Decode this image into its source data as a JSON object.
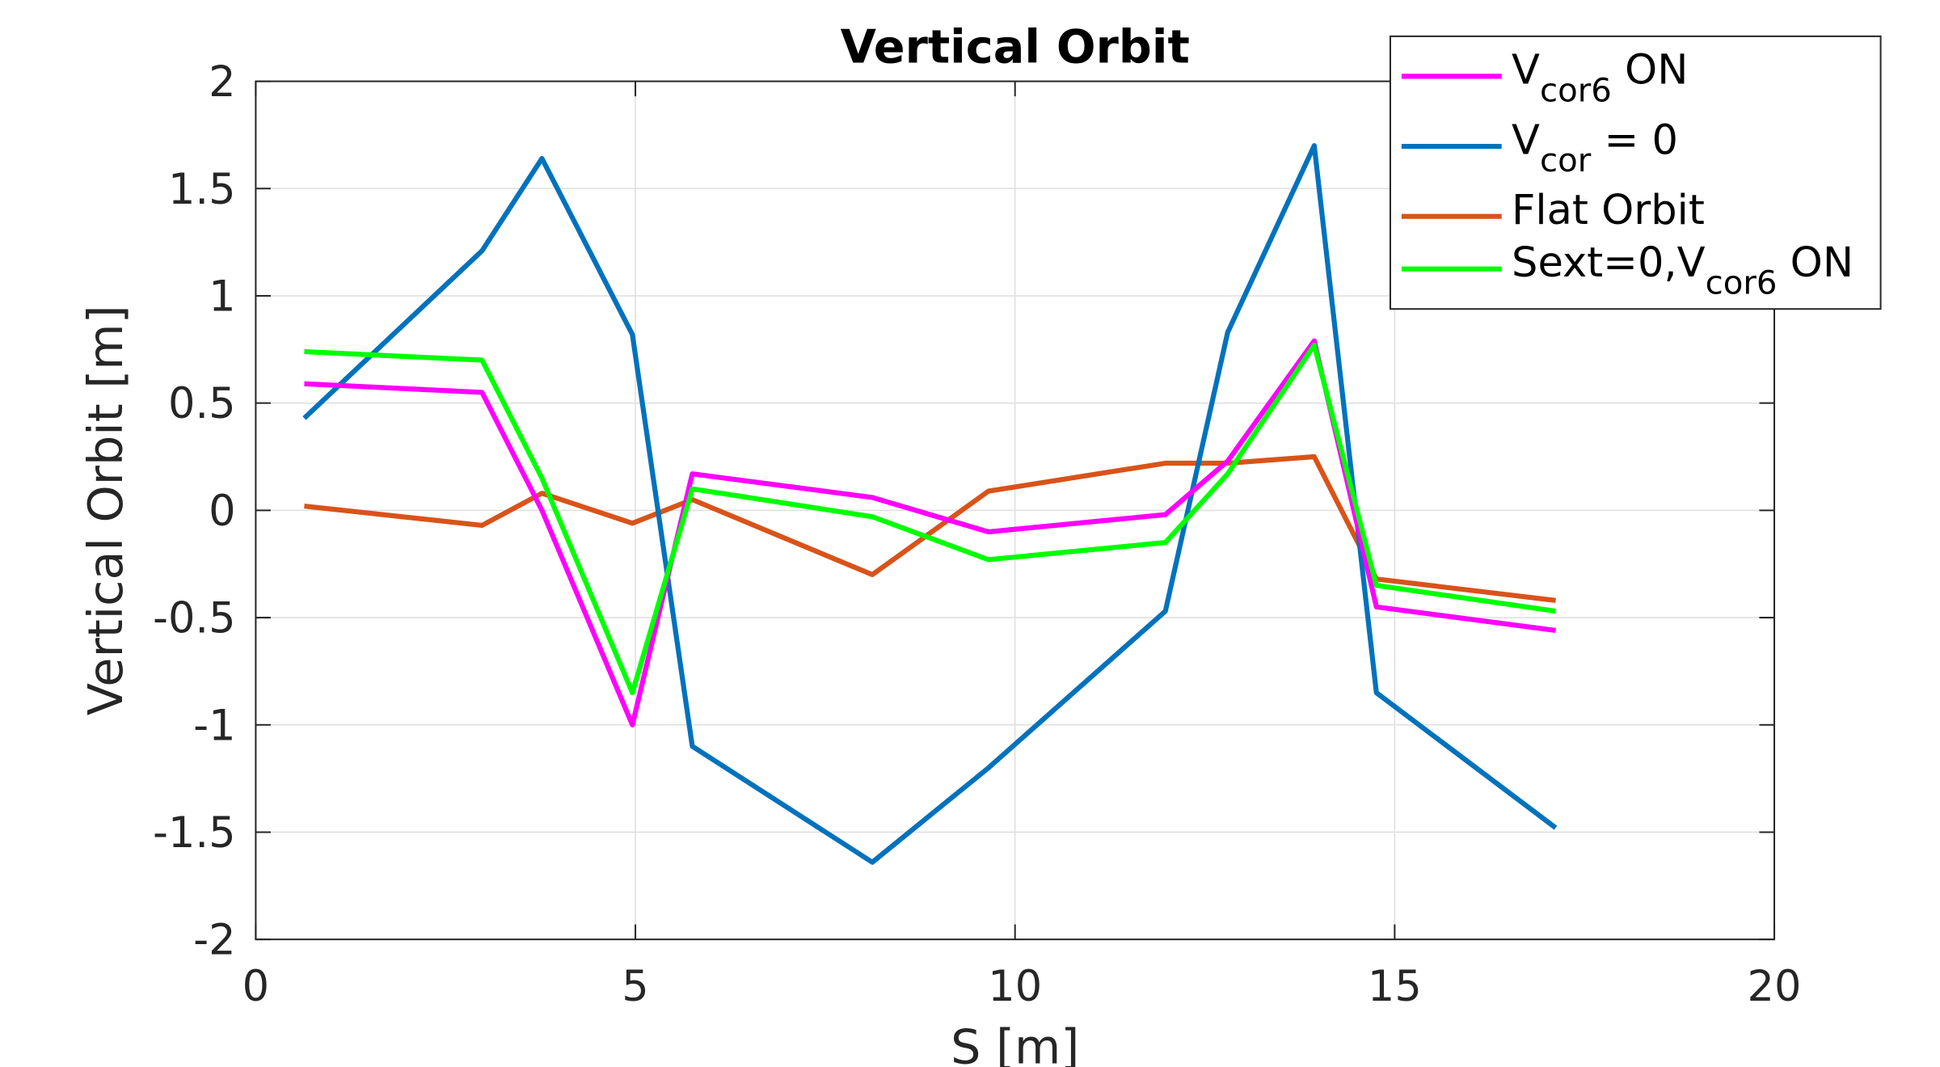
{
  "chart_data": {
    "type": "line",
    "title": "Vertical Orbit",
    "xlabel": "S [m]",
    "ylabel": "Vertical Orbit [m]",
    "xlim": [
      0,
      20
    ],
    "ylim": [
      -2,
      2
    ],
    "grid": true,
    "legend_position": "top-right",
    "xticks": [
      0,
      5,
      10,
      15,
      20
    ],
    "xtick_labels": [
      "0",
      "5",
      "10",
      "15",
      "20"
    ],
    "yticks": [
      -2,
      -1.5,
      -1,
      -0.5,
      0,
      0.5,
      1,
      1.5,
      2
    ],
    "ytick_labels": [
      "-2",
      "-1.5",
      "-1",
      "-0.5",
      "0",
      "0.5",
      "1",
      "1.5",
      "2"
    ],
    "x": [
      0.64,
      2.98,
      3.77,
      4.96,
      5.75,
      8.12,
      9.65,
      11.98,
      12.8,
      13.94,
      14.76,
      17.12
    ],
    "series": [
      {
        "name": "Vcor6 ON",
        "label_main": "V",
        "label_sub": "cor6",
        "label_tail": " ON",
        "color": "#ff00ff",
        "values": [
          0.59,
          0.55,
          0.0,
          -1.0,
          0.17,
          0.06,
          -0.1,
          -0.02,
          0.23,
          0.79,
          -0.45,
          -0.56
        ]
      },
      {
        "name": "Vcor = 0",
        "label_main": "V",
        "label_sub": "cor",
        "label_tail": " = 0",
        "color": "#0072bd",
        "values": [
          0.43,
          1.21,
          1.64,
          0.82,
          -1.1,
          -1.64,
          -1.2,
          -0.47,
          0.83,
          1.7,
          -0.85,
          -1.48
        ]
      },
      {
        "name": "Flat Orbit",
        "label_main": "Flat Orbit",
        "label_sub": "",
        "label_tail": "",
        "color": "#d95319",
        "values": [
          0.02,
          -0.07,
          0.08,
          -0.06,
          0.05,
          -0.3,
          0.09,
          0.22,
          0.22,
          0.25,
          -0.32,
          -0.42
        ]
      },
      {
        "name": "Sext=0,Vcor6 ON",
        "label_main": "Sext=0,V",
        "label_sub": "cor6",
        "label_tail": " ON",
        "color": "#00ff00",
        "values": [
          0.74,
          0.7,
          0.15,
          -0.85,
          0.1,
          -0.03,
          -0.23,
          -0.15,
          0.17,
          0.77,
          -0.35,
          -0.47
        ]
      }
    ]
  }
}
